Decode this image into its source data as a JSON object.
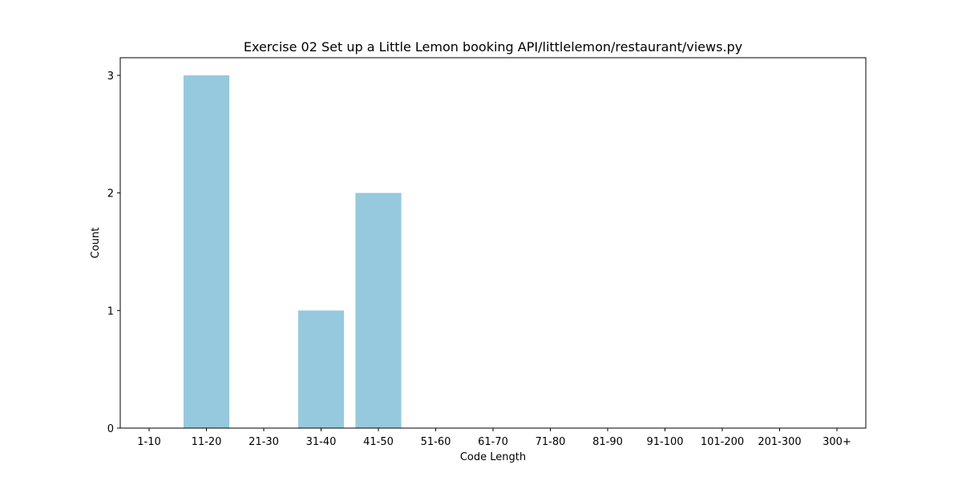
{
  "chart_data": {
    "type": "bar",
    "title": "Exercise 02 Set up a Little Lemon booking API/littlelemon/restaurant/views.py",
    "xlabel": "Code Length",
    "ylabel": "Count",
    "categories": [
      "1-10",
      "11-20",
      "21-30",
      "31-40",
      "41-50",
      "51-60",
      "61-70",
      "71-80",
      "81-90",
      "91-100",
      "101-200",
      "201-300",
      "300+"
    ],
    "values": [
      0,
      3,
      0,
      1,
      2,
      0,
      0,
      0,
      0,
      0,
      0,
      0,
      0
    ],
    "ylim": [
      0,
      3.15
    ],
    "yticks": [
      0,
      1,
      2,
      3
    ],
    "bar_color": "#96c9dd",
    "grid": false,
    "legend": "none"
  }
}
